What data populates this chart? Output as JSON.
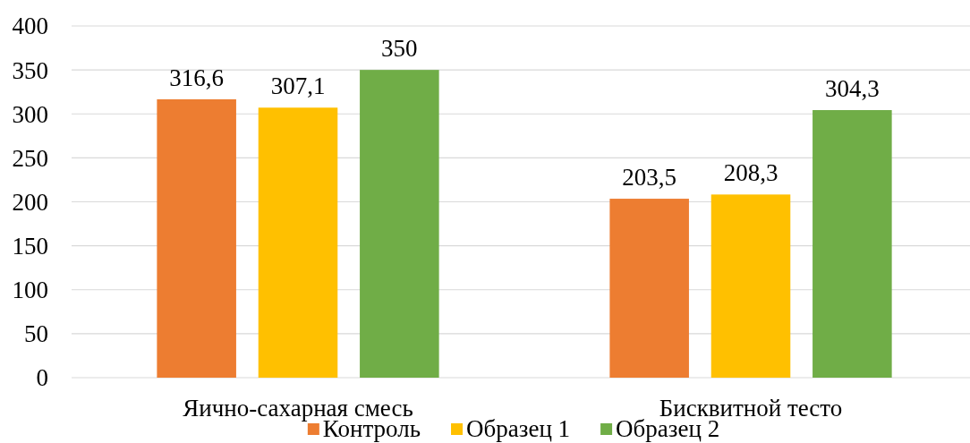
{
  "chart_data": {
    "type": "bar",
    "categories": [
      "Яично-сахарная смесь",
      "Бисквитной тесто"
    ],
    "series": [
      {
        "name": "Контроль",
        "color": "#ed7d31",
        "values": [
          316.6,
          203.5
        ],
        "value_labels": [
          "316,6",
          "203,5"
        ]
      },
      {
        "name": "Образец 1",
        "color": "#ffc000",
        "values": [
          307.1,
          208.3
        ],
        "value_labels": [
          "307,1",
          "208,3"
        ]
      },
      {
        "name": "Образец 2",
        "color": "#70ad47",
        "values": [
          350,
          304.3
        ],
        "value_labels": [
          "350",
          "304,3"
        ]
      }
    ],
    "ylim": [
      0,
      400
    ],
    "yticks": [
      0,
      50,
      100,
      150,
      200,
      250,
      300,
      350,
      400
    ],
    "grid": "y",
    "legend": "bottom"
  }
}
